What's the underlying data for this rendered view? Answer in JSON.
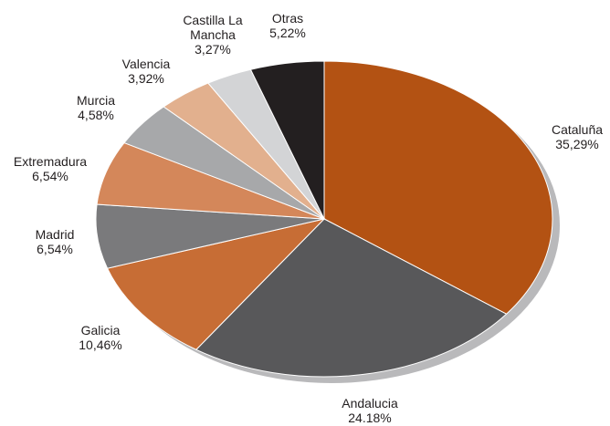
{
  "chart_data": {
    "type": "pie",
    "categories": [
      "Cataluña",
      "Andalucia",
      "Galicia",
      "Madrid",
      "Extremadura",
      "Murcia",
      "Valencia",
      "Castilla La Mancha",
      "Otras"
    ],
    "values": [
      35.29,
      24.18,
      10.46,
      6.54,
      6.54,
      4.58,
      3.92,
      3.27,
      5.22
    ],
    "value_labels": [
      "35,29%",
      "24.18%",
      "10,46%",
      "6,54%",
      "6,54%",
      "4,58%",
      "3,92%",
      "3,27%",
      "5,22%"
    ],
    "colors": [
      "#b35213",
      "#58585a",
      "#c76d35",
      "#7a7a7c",
      "#d4875a",
      "#a7a8aa",
      "#e2b08e",
      "#d3d4d6",
      "#231f20"
    ]
  }
}
